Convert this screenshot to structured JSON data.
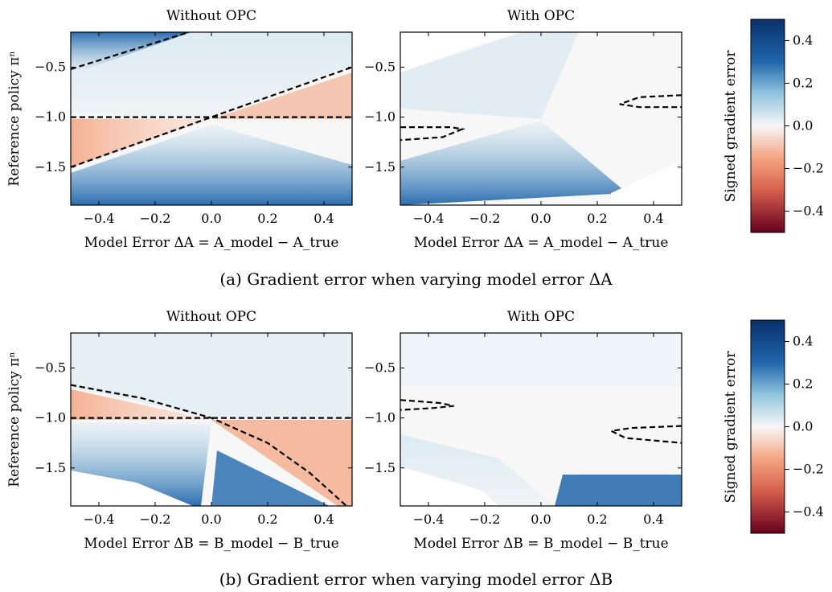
{
  "figure": {
    "captions": [
      "(a) Gradient error when varying model error ΔA",
      "(b) Gradient error when varying model error ΔB"
    ]
  },
  "colorbar": {
    "label": "Signed gradient error",
    "range": [
      -0.5,
      0.5
    ],
    "ticks": [
      0.4,
      0.2,
      0.0,
      -0.2,
      -0.4
    ],
    "tick_labels": [
      "0.4",
      "0.2",
      "0.0",
      "−0.2",
      "−0.4"
    ],
    "colors": {
      "max": "#08306b",
      "high": "#2166ac",
      "mid_high": "#92c5de",
      "zero": "#f7f7f7",
      "mid_low": "#f4a582",
      "low": "#d6604d",
      "min": "#67001f"
    }
  },
  "chart_data": [
    {
      "type": "heatmap",
      "panel": "a-left",
      "title": "Without OPC",
      "xlabel": "Model Error ΔA = A_model − A_true",
      "ylabel": "Reference policy πⁿ",
      "xlim": [
        -0.5,
        0.5
      ],
      "ylim": [
        -1.88,
        -0.15
      ],
      "xticks": [
        -0.4,
        -0.2,
        0.0,
        0.2,
        0.4
      ],
      "xtick_labels": [
        "−0.4",
        "−0.2",
        "0.0",
        "0.2",
        "0.4"
      ],
      "yticks": [
        -0.5,
        -1.0,
        -1.5
      ],
      "ytick_labels": [
        "−0.5",
        "−1.0",
        "−1.5"
      ],
      "zero_contours": [
        [
          [
            -0.5,
            -1.0
          ],
          [
            0.5,
            -1.0
          ]
        ],
        [
          [
            -0.5,
            -1.5
          ],
          [
            0.0,
            -1.0
          ],
          [
            0.5,
            -0.5
          ]
        ],
        [
          [
            -0.5,
            -0.52
          ],
          [
            -0.08,
            -0.15
          ]
        ]
      ]
    },
    {
      "type": "heatmap",
      "panel": "a-right",
      "title": "With OPC",
      "xlabel": "Model Error ΔA = A_model − A_true",
      "ylabel": "",
      "xlim": [
        -0.5,
        0.5
      ],
      "ylim": [
        -1.88,
        -0.15
      ],
      "xticks": [
        -0.4,
        -0.2,
        0.0,
        0.2,
        0.4
      ],
      "xtick_labels": [
        "−0.4",
        "−0.2",
        "0.0",
        "0.2",
        "0.4"
      ],
      "yticks": [
        -0.5,
        -1.0,
        -1.5
      ],
      "ytick_labels": [
        "−0.5",
        "−1.0",
        "−1.5"
      ],
      "zero_contours": [
        [
          [
            -0.5,
            -1.1
          ],
          [
            -0.32,
            -1.1
          ],
          [
            -0.28,
            -1.12
          ],
          [
            -0.35,
            -1.2
          ],
          [
            -0.5,
            -1.23
          ]
        ],
        [
          [
            0.5,
            -0.78
          ],
          [
            0.35,
            -0.8
          ],
          [
            0.28,
            -0.87
          ],
          [
            0.35,
            -0.9
          ],
          [
            0.5,
            -0.9
          ]
        ]
      ]
    },
    {
      "type": "heatmap",
      "panel": "b-left",
      "title": "Without OPC",
      "xlabel": "Model Error ΔB = B_model − B_true",
      "ylabel": "Reference policy πⁿ",
      "xlim": [
        -0.5,
        0.5
      ],
      "ylim": [
        -1.88,
        -0.15
      ],
      "xticks": [
        -0.4,
        -0.2,
        0.0,
        0.2,
        0.4
      ],
      "xtick_labels": [
        "−0.4",
        "−0.2",
        "0.0",
        "0.2",
        "0.4"
      ],
      "yticks": [
        -0.5,
        -1.0,
        -1.5
      ],
      "ytick_labels": [
        "−0.5",
        "−1.0",
        "−1.5"
      ],
      "zero_contours": [
        [
          [
            -0.5,
            -1.0
          ],
          [
            0.5,
            -1.0
          ]
        ],
        [
          [
            -0.5,
            -0.67
          ],
          [
            -0.25,
            -0.8
          ],
          [
            0.0,
            -1.0
          ],
          [
            0.2,
            -1.25
          ],
          [
            0.35,
            -1.55
          ],
          [
            0.48,
            -1.88
          ]
        ]
      ]
    },
    {
      "type": "heatmap",
      "panel": "b-right",
      "title": "With OPC",
      "xlabel": "Model Error ΔB = B_model − B_true",
      "ylabel": "",
      "xlim": [
        -0.5,
        0.5
      ],
      "ylim": [
        -1.88,
        -0.15
      ],
      "xticks": [
        -0.4,
        -0.2,
        0.0,
        0.2,
        0.4
      ],
      "xtick_labels": [
        "−0.4",
        "−0.2",
        "0.0",
        "0.2",
        "0.4"
      ],
      "yticks": [
        -0.5,
        -1.0,
        -1.5
      ],
      "ytick_labels": [
        "−0.5",
        "−1.0",
        "−1.5"
      ],
      "zero_contours": [
        [
          [
            -0.5,
            -0.82
          ],
          [
            -0.36,
            -0.85
          ],
          [
            -0.31,
            -0.88
          ],
          [
            -0.38,
            -0.9
          ],
          [
            -0.5,
            -0.92
          ]
        ],
        [
          [
            0.5,
            -1.08
          ],
          [
            0.32,
            -1.1
          ],
          [
            0.25,
            -1.13
          ],
          [
            0.3,
            -1.2
          ],
          [
            0.5,
            -1.25
          ]
        ]
      ]
    }
  ]
}
